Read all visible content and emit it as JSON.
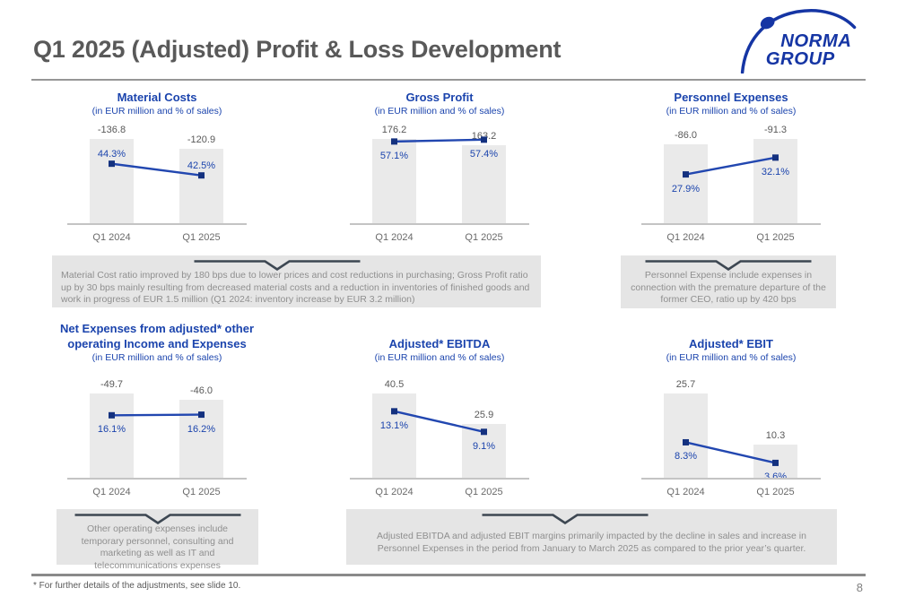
{
  "page": {
    "title": "Q1 2025 (Adjusted) Profit & Loss Development",
    "footnote": "* For further details of the adjustments, see slide 10.",
    "page_number": "8"
  },
  "logo": {
    "line1": "NORMA",
    "line2": "GROUP"
  },
  "colors": {
    "brand_blue": "#1b44ad",
    "trend_line_blue": "#2247b0",
    "marker_blue": "#14317f",
    "bar_fill": "#eaeaea",
    "heading_gray": "#595959",
    "callout_bg": "#e5e5e5",
    "callout_text": "#8f8f8f",
    "chevron_dark": "#3d4752",
    "logo_blue": "#1535a4"
  },
  "chart_data": [
    {
      "type": "bar+line",
      "title_lines": [
        "Material Costs"
      ],
      "subtitle": "(in EUR million and % of sales)",
      "categories": [
        "Q1 2024",
        "Q1 2025"
      ],
      "series": [
        {
          "name": "EUR million",
          "type": "bar",
          "values": [
            -136.8,
            -120.9
          ],
          "labels": [
            "-136.8",
            "-120.9"
          ]
        },
        {
          "name": "% of sales",
          "type": "line",
          "values": [
            44.3,
            42.5
          ],
          "labels": [
            "44.3%",
            "42.5%"
          ]
        }
      ],
      "pct_axis": [
        35,
        49.5
      ],
      "pct_label_pos": "above",
      "grid": false
    },
    {
      "type": "bar+line",
      "title_lines": [
        "Gross Profit"
      ],
      "subtitle": "(in EUR million and % of sales)",
      "categories": [
        "Q1 2024",
        "Q1 2025"
      ],
      "series": [
        {
          "name": "EUR million",
          "type": "bar",
          "values": [
            176.2,
            163.2
          ],
          "labels": [
            "176.2",
            "163.2"
          ]
        },
        {
          "name": "% of sales",
          "type": "line",
          "values": [
            57.1,
            57.4
          ],
          "labels": [
            "57.1%",
            "57.4%"
          ]
        }
      ],
      "pct_axis": [
        43.5,
        59
      ],
      "pct_label_pos": "below",
      "grid": false
    },
    {
      "type": "bar+line",
      "title_lines": [
        "Personnel Expenses"
      ],
      "subtitle": "(in EUR million and % of sales)",
      "categories": [
        "Q1 2024",
        "Q1 2025"
      ],
      "series": [
        {
          "name": "EUR million",
          "type": "bar",
          "values": [
            -86.0,
            -91.3
          ],
          "labels": [
            "-86.0",
            "-91.3"
          ]
        },
        {
          "name": "% of sales",
          "type": "line",
          "values": [
            27.9,
            32.1
          ],
          "labels": [
            "27.9%",
            "32.1%"
          ]
        }
      ],
      "pct_axis": [
        15.5,
        39
      ],
      "pct_label_pos": "below",
      "grid": false
    },
    {
      "type": "bar+line",
      "title_lines": [
        "Net Expenses from adjusted* other",
        "operating Income and Expenses"
      ],
      "subtitle": "(in EUR million and % of sales)",
      "categories": [
        "Q1 2024",
        "Q1 2025"
      ],
      "series": [
        {
          "name": "EUR million",
          "type": "bar",
          "values": [
            -49.7,
            -46.0
          ],
          "labels": [
            "-49.7",
            "-46.0"
          ]
        },
        {
          "name": "% of sales",
          "type": "line",
          "values": [
            16.1,
            16.2
          ],
          "labels": [
            "16.1%",
            "16.2%"
          ]
        }
      ],
      "pct_axis": [
        6,
        21
      ],
      "pct_label_pos": "below",
      "grid": false
    },
    {
      "type": "bar+line",
      "title_lines": [
        "Adjusted* EBITDA"
      ],
      "subtitle": "(in EUR million and % of sales)",
      "categories": [
        "Q1 2024",
        "Q1 2025"
      ],
      "series": [
        {
          "name": "EUR million",
          "type": "bar",
          "values": [
            40.5,
            25.9
          ],
          "labels": [
            "40.5",
            "25.9"
          ]
        },
        {
          "name": "% of sales",
          "type": "line",
          "values": [
            13.1,
            9.1
          ],
          "labels": [
            "13.1%",
            "9.1%"
          ]
        }
      ],
      "pct_axis": [
        0,
        18.3
      ],
      "pct_label_pos": "below",
      "grid": false
    },
    {
      "type": "bar+line",
      "title_lines": [
        "Adjusted* EBIT"
      ],
      "subtitle": "(in EUR million and % of sales)",
      "categories": [
        "Q1 2024",
        "Q1 2025"
      ],
      "series": [
        {
          "name": "EUR million",
          "type": "bar",
          "values": [
            25.7,
            10.3
          ],
          "labels": [
            "25.7",
            "10.3"
          ]
        },
        {
          "name": "% of sales",
          "type": "line",
          "values": [
            8.3,
            3.6
          ],
          "labels": [
            "8.3%",
            "3.6%"
          ]
        }
      ],
      "pct_axis": [
        0,
        21.5
      ],
      "pct_label_pos": "below",
      "grid": false
    }
  ],
  "callouts": [
    {
      "text": "Material Cost ratio improved by 180 bps due to lower prices and cost reductions in purchasing; Gross Profit ratio up by 30 bps mainly resulting from decreased material costs and a reduction in inventories of finished goods and work in progress of EUR 1.5 million (Q1 2024: inventory increase by EUR 3.2 million)"
    },
    {
      "text": "Personnel Expense include expenses in connection with the premature departure of the former CEO, ratio up by 420 bps"
    },
    {
      "text": "Other operating expenses include temporary personnel, consulting and marketing as well as IT and telecommunications expenses"
    },
    {
      "text": "Adjusted EBITDA and adjusted EBIT margins primarily impacted by the decline in sales and increase in Personnel Expenses in the period from January to March 2025 as compared to the prior year’s quarter."
    }
  ]
}
